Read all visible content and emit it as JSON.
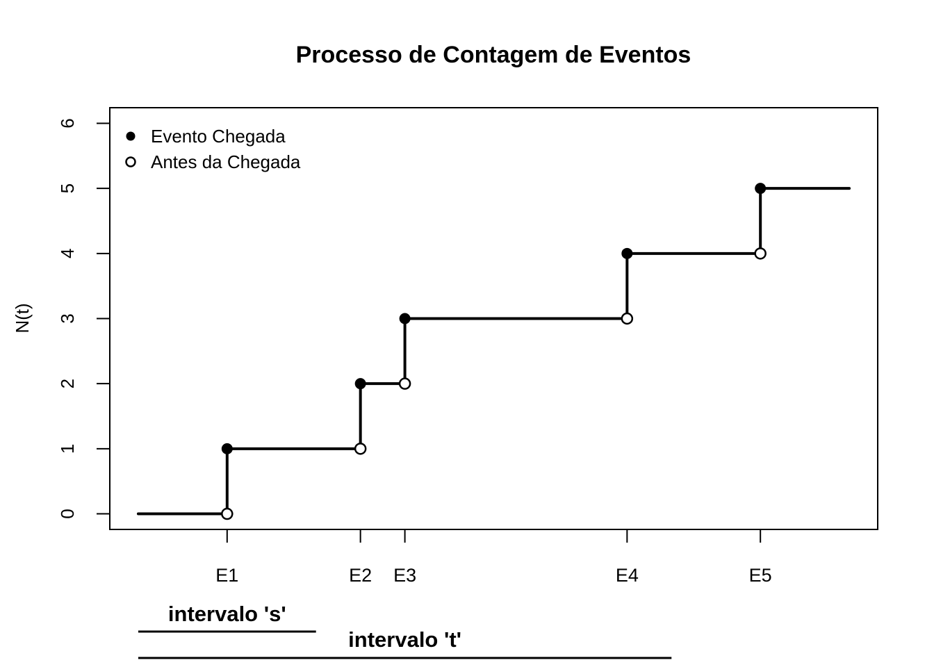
{
  "title": "Processo de Contagem de Eventos",
  "colors": {
    "foreground": "#000000",
    "background": "#ffffff",
    "event_label": "#0000ff"
  },
  "legend": {
    "items": [
      {
        "label": "Evento Chegada",
        "marker": "filled-circle"
      },
      {
        "label": "Antes da Chegada",
        "marker": "open-circle"
      }
    ]
  },
  "chart_data": {
    "type": "line",
    "subtype": "step-counting-process",
    "title": "Processo de Contagem de Eventos",
    "xlabel": "",
    "ylabel": "N(t)",
    "arrival_times": [
      1,
      2.5,
      3,
      5.5,
      7
    ],
    "arrival_labels": [
      "E1",
      "E2",
      "E3",
      "E4",
      "E5"
    ],
    "counts_after_arrival": [
      1,
      2,
      3,
      4,
      5
    ],
    "x_range_drawn": [
      0,
      8
    ],
    "xlim": [
      -0.32,
      8.32
    ],
    "ylim": [
      -0.24,
      6.24
    ],
    "y_ticks": [
      0,
      1,
      2,
      3,
      4,
      5,
      6
    ],
    "grid": false,
    "legend_position": "top-left-inside",
    "legend": [
      {
        "label": "Evento Chegada",
        "marker": "filled-circle"
      },
      {
        "label": "Antes da Chegada",
        "marker": "open-circle"
      }
    ],
    "annotations": [
      {
        "label": "intervalo 's'",
        "from": 0,
        "to": 2
      },
      {
        "label": "intervalo 't'",
        "from": 0,
        "to": 6
      }
    ]
  }
}
